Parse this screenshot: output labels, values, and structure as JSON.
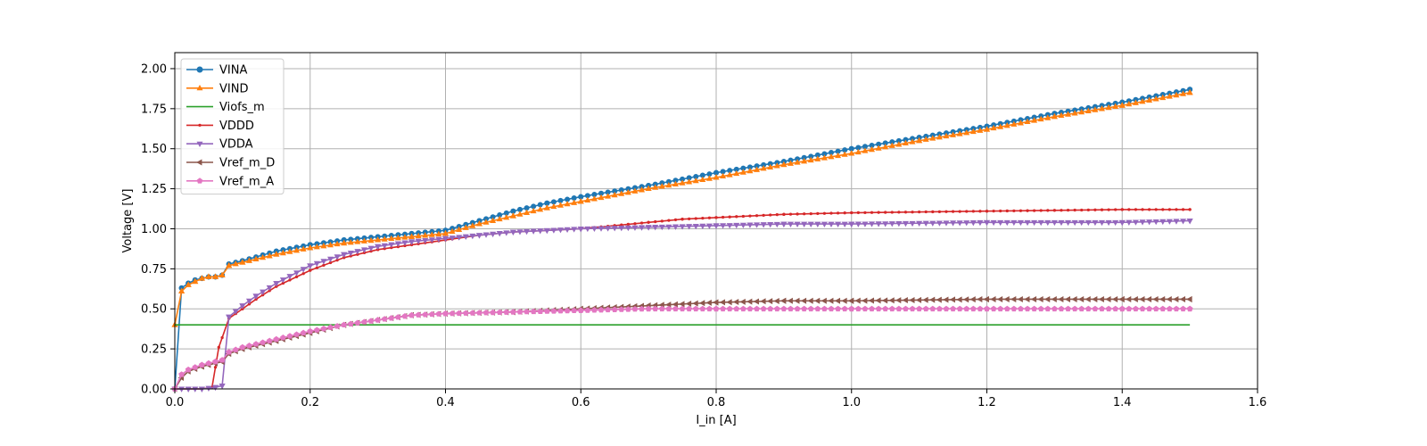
{
  "chart_data": {
    "type": "line",
    "title": "",
    "xlabel": "I_in [A]",
    "ylabel": "Voltage [V]",
    "xlim": [
      0,
      1.6
    ],
    "ylim": [
      0,
      2.1
    ],
    "xticks": [
      "0.0",
      "0.2",
      "0.4",
      "0.6",
      "0.8",
      "1.0",
      "1.2",
      "1.4",
      "1.6"
    ],
    "yticks": [
      "0.00",
      "0.25",
      "0.50",
      "0.75",
      "1.00",
      "1.25",
      "1.50",
      "1.75",
      "2.00"
    ],
    "grid": true,
    "legend_position": "top-left",
    "series": [
      {
        "name": "VINA",
        "color": "#1f77b4",
        "marker": "circle",
        "points": [
          [
            0,
            0
          ],
          [
            0.01,
            0.63
          ],
          [
            0.02,
            0.66
          ],
          [
            0.03,
            0.68
          ],
          [
            0.04,
            0.69
          ],
          [
            0.05,
            0.7
          ],
          [
            0.06,
            0.7
          ],
          [
            0.07,
            0.71
          ],
          [
            0.08,
            0.78
          ],
          [
            0.1,
            0.8
          ],
          [
            0.15,
            0.86
          ],
          [
            0.2,
            0.9
          ],
          [
            0.25,
            0.93
          ],
          [
            0.3,
            0.95
          ],
          [
            0.35,
            0.97
          ],
          [
            0.4,
            0.99
          ],
          [
            0.45,
            1.05
          ],
          [
            0.5,
            1.11
          ],
          [
            0.55,
            1.16
          ],
          [
            0.6,
            1.2
          ],
          [
            0.7,
            1.27
          ],
          [
            0.8,
            1.35
          ],
          [
            0.9,
            1.42
          ],
          [
            1.0,
            1.5
          ],
          [
            1.1,
            1.57
          ],
          [
            1.2,
            1.64
          ],
          [
            1.3,
            1.72
          ],
          [
            1.4,
            1.79
          ],
          [
            1.5,
            1.87
          ]
        ]
      },
      {
        "name": "VIND",
        "color": "#ff7f0e",
        "marker": "triangle-up",
        "points": [
          [
            0,
            0.4
          ],
          [
            0.01,
            0.61
          ],
          [
            0.02,
            0.65
          ],
          [
            0.03,
            0.67
          ],
          [
            0.04,
            0.69
          ],
          [
            0.05,
            0.7
          ],
          [
            0.06,
            0.7
          ],
          [
            0.07,
            0.71
          ],
          [
            0.08,
            0.77
          ],
          [
            0.1,
            0.79
          ],
          [
            0.15,
            0.84
          ],
          [
            0.2,
            0.88
          ],
          [
            0.25,
            0.91
          ],
          [
            0.3,
            0.93
          ],
          [
            0.35,
            0.95
          ],
          [
            0.4,
            0.97
          ],
          [
            0.45,
            1.03
          ],
          [
            0.5,
            1.08
          ],
          [
            0.55,
            1.13
          ],
          [
            0.6,
            1.17
          ],
          [
            0.7,
            1.25
          ],
          [
            0.8,
            1.32
          ],
          [
            0.9,
            1.4
          ],
          [
            1.0,
            1.47
          ],
          [
            1.1,
            1.55
          ],
          [
            1.2,
            1.62
          ],
          [
            1.3,
            1.7
          ],
          [
            1.4,
            1.77
          ],
          [
            1.5,
            1.85
          ]
        ]
      },
      {
        "name": "Viofs_m",
        "color": "#2ca02c",
        "marker": "none",
        "points": [
          [
            0,
            0.4
          ],
          [
            1.5,
            0.4
          ]
        ]
      },
      {
        "name": "VDDD",
        "color": "#d62728",
        "marker": "point",
        "points": [
          [
            0,
            0
          ],
          [
            0.02,
            0.0
          ],
          [
            0.04,
            0.0
          ],
          [
            0.055,
            0.01
          ],
          [
            0.065,
            0.26
          ],
          [
            0.08,
            0.44
          ],
          [
            0.1,
            0.5
          ],
          [
            0.12,
            0.56
          ],
          [
            0.15,
            0.64
          ],
          [
            0.2,
            0.74
          ],
          [
            0.25,
            0.82
          ],
          [
            0.3,
            0.87
          ],
          [
            0.35,
            0.9
          ],
          [
            0.4,
            0.93
          ],
          [
            0.45,
            0.96
          ],
          [
            0.5,
            0.98
          ],
          [
            0.55,
            0.99
          ],
          [
            0.6,
            1.0
          ],
          [
            0.65,
            1.02
          ],
          [
            0.7,
            1.04
          ],
          [
            0.75,
            1.06
          ],
          [
            0.8,
            1.07
          ],
          [
            0.9,
            1.09
          ],
          [
            1.0,
            1.1
          ],
          [
            1.2,
            1.11
          ],
          [
            1.4,
            1.12
          ],
          [
            1.5,
            1.12
          ]
        ]
      },
      {
        "name": "VDDA",
        "color": "#9467bd",
        "marker": "triangle-down",
        "points": [
          [
            0,
            0
          ],
          [
            0.02,
            0.0
          ],
          [
            0.04,
            0.0
          ],
          [
            0.06,
            0.01
          ],
          [
            0.07,
            0.02
          ],
          [
            0.08,
            0.45
          ],
          [
            0.1,
            0.52
          ],
          [
            0.12,
            0.58
          ],
          [
            0.15,
            0.66
          ],
          [
            0.2,
            0.77
          ],
          [
            0.25,
            0.84
          ],
          [
            0.3,
            0.89
          ],
          [
            0.35,
            0.92
          ],
          [
            0.4,
            0.94
          ],
          [
            0.45,
            0.96
          ],
          [
            0.5,
            0.98
          ],
          [
            0.55,
            0.99
          ],
          [
            0.6,
            1.0
          ],
          [
            0.7,
            1.01
          ],
          [
            0.8,
            1.02
          ],
          [
            0.9,
            1.03
          ],
          [
            1.0,
            1.03
          ],
          [
            1.2,
            1.04
          ],
          [
            1.4,
            1.04
          ],
          [
            1.5,
            1.05
          ]
        ]
      },
      {
        "name": "Vref_m_D",
        "color": "#8c564b",
        "marker": "triangle-left",
        "points": [
          [
            0,
            0
          ],
          [
            0.01,
            0.07
          ],
          [
            0.02,
            0.11
          ],
          [
            0.04,
            0.14
          ],
          [
            0.06,
            0.16
          ],
          [
            0.07,
            0.17
          ],
          [
            0.08,
            0.22
          ],
          [
            0.1,
            0.25
          ],
          [
            0.15,
            0.3
          ],
          [
            0.2,
            0.35
          ],
          [
            0.25,
            0.4
          ],
          [
            0.3,
            0.43
          ],
          [
            0.35,
            0.46
          ],
          [
            0.4,
            0.47
          ],
          [
            0.5,
            0.48
          ],
          [
            0.6,
            0.5
          ],
          [
            0.7,
            0.52
          ],
          [
            0.8,
            0.54
          ],
          [
            0.9,
            0.55
          ],
          [
            1.0,
            0.55
          ],
          [
            1.2,
            0.56
          ],
          [
            1.4,
            0.56
          ],
          [
            1.5,
            0.56
          ]
        ]
      },
      {
        "name": "Vref_m_A",
        "color": "#e377c2",
        "marker": "pentagon",
        "points": [
          [
            0,
            0
          ],
          [
            0.01,
            0.09
          ],
          [
            0.02,
            0.12
          ],
          [
            0.04,
            0.15
          ],
          [
            0.06,
            0.17
          ],
          [
            0.07,
            0.18
          ],
          [
            0.08,
            0.23
          ],
          [
            0.1,
            0.26
          ],
          [
            0.15,
            0.31
          ],
          [
            0.2,
            0.36
          ],
          [
            0.25,
            0.4
          ],
          [
            0.3,
            0.43
          ],
          [
            0.35,
            0.46
          ],
          [
            0.4,
            0.47
          ],
          [
            0.5,
            0.48
          ],
          [
            0.6,
            0.49
          ],
          [
            0.7,
            0.5
          ],
          [
            0.8,
            0.5
          ],
          [
            1.0,
            0.5
          ],
          [
            1.2,
            0.5
          ],
          [
            1.4,
            0.5
          ],
          [
            1.5,
            0.5
          ]
        ]
      }
    ]
  }
}
